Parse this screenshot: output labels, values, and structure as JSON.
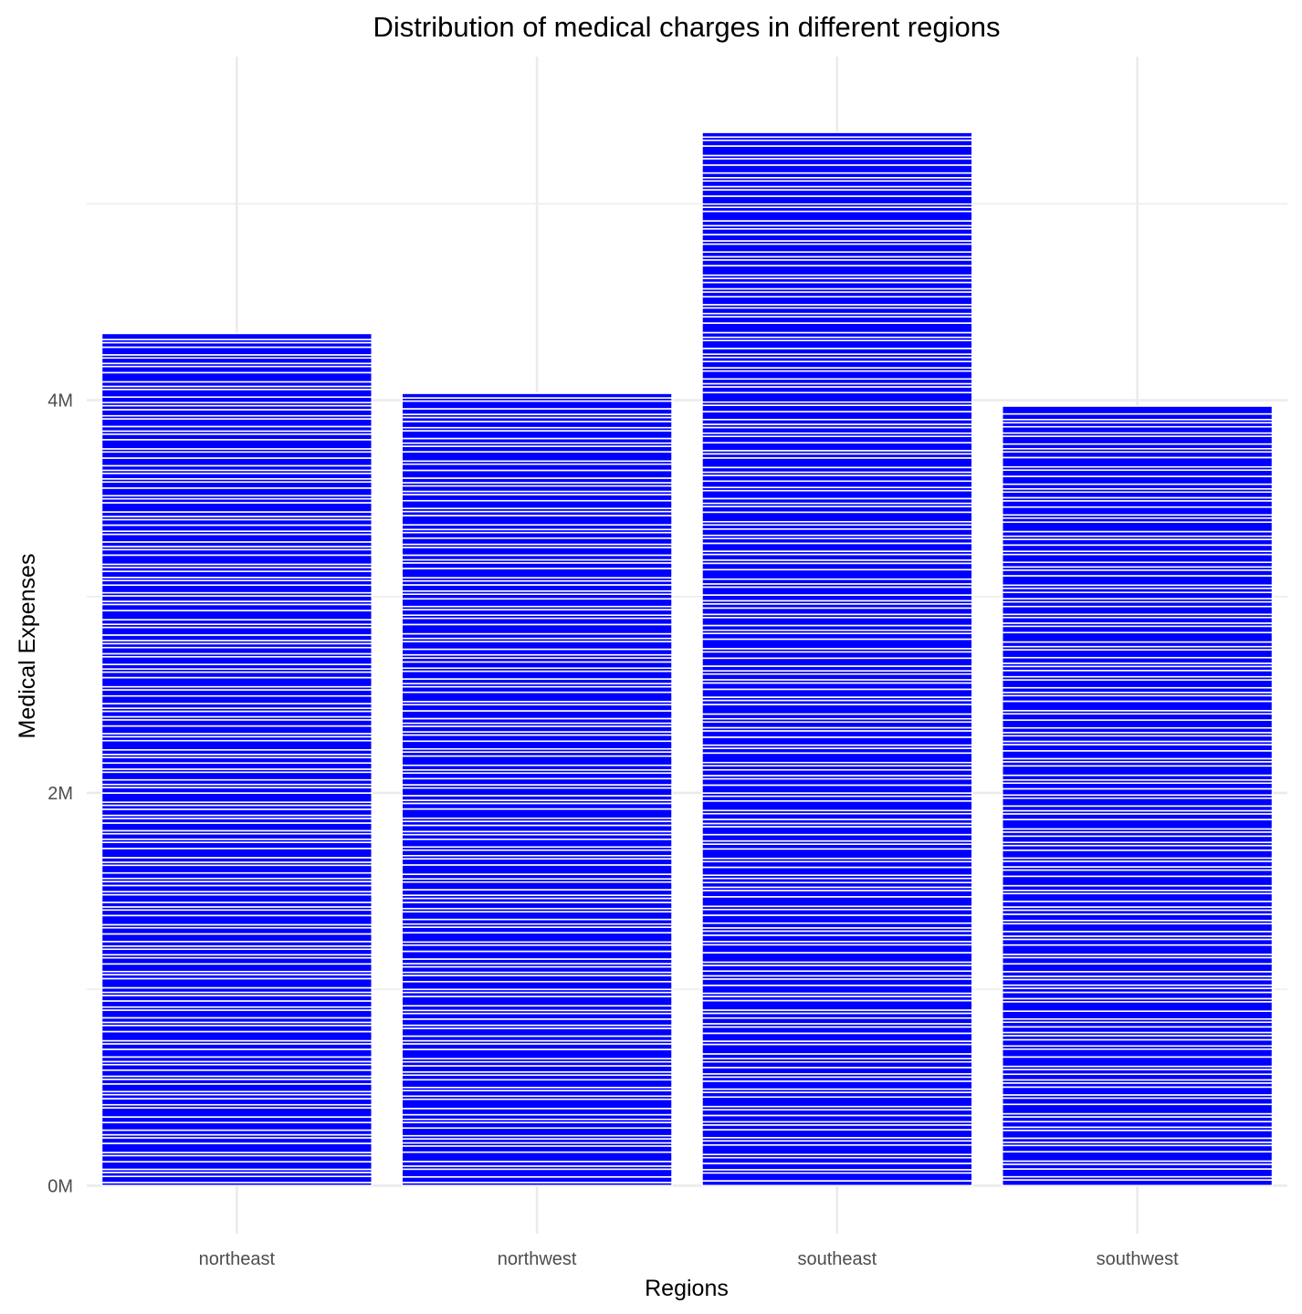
{
  "chart_data": {
    "type": "bar",
    "stacked": true,
    "title": "Distribution of medical charges in different regions",
    "xlabel": "Regions",
    "ylabel": "Medical Expenses",
    "categories": [
      "northeast",
      "northwest",
      "southeast",
      "southwest"
    ],
    "totals": [
      4340000,
      4035000,
      5364000,
      3970000
    ],
    "ylim": [
      -245000,
      5750000
    ],
    "yticks": [
      0,
      2000000,
      4000000
    ],
    "ytick_labels": [
      "0M",
      "2M",
      "4M"
    ],
    "segment_scale": 5000,
    "segments": [
      [
        40,
        80,
        52,
        40,
        100,
        80,
        40,
        120,
        72,
        40,
        60,
        100,
        72,
        120,
        40,
        80,
        52,
        40,
        100,
        60,
        40,
        80,
        72,
        40,
        60,
        100,
        72,
        40,
        120,
        80,
        40,
        60,
        100,
        40,
        80,
        72,
        40,
        60,
        120,
        52,
        40,
        100,
        80,
        40,
        72,
        40,
        60,
        100,
        80,
        40,
        120,
        72,
        40,
        60,
        100,
        40,
        80,
        52,
        40,
        72,
        100,
        40,
        60,
        120,
        80,
        40,
        72,
        40,
        100,
        60,
        40,
        80,
        52,
        40,
        120,
        72,
        40,
        60,
        100,
        40,
        80,
        72,
        40,
        60,
        120,
        52,
        40,
        100,
        80,
        40,
        72,
        40,
        60,
        100,
        80,
        40,
        120,
        72,
        40,
        60,
        100,
        40,
        80,
        52,
        40,
        72,
        100,
        40,
        60,
        120,
        80,
        40,
        72,
        40,
        100,
        60,
        40,
        80,
        52,
        40,
        120,
        72,
        40,
        60,
        100,
        40,
        80,
        72,
        40,
        60,
        120,
        52,
        40,
        100,
        80,
        40,
        72,
        40,
        60,
        100,
        80,
        40,
        120,
        72,
        40,
        60,
        100,
        40,
        80,
        52,
        40,
        72,
        100,
        40,
        60,
        120,
        80,
        40,
        72,
        40,
        100,
        60,
        40,
        80
      ],
      [
        40,
        72,
        100,
        40,
        60,
        120,
        80,
        40,
        52,
        40,
        100,
        72,
        40,
        60,
        80,
        120,
        40,
        72,
        40,
        100,
        60,
        40,
        80,
        52,
        40,
        120,
        72,
        40,
        60,
        100,
        40,
        80,
        72,
        40,
        60,
        120,
        52,
        40,
        100,
        80,
        40,
        72,
        40,
        60,
        100,
        80,
        40,
        120,
        72,
        40,
        60,
        100,
        40,
        80,
        52,
        40,
        72,
        100,
        40,
        60,
        120,
        80,
        40,
        72,
        40,
        100,
        60,
        40,
        80,
        52,
        40,
        120,
        72,
        40,
        60,
        100,
        40,
        80,
        72,
        40,
        60,
        120,
        52,
        40,
        100,
        80,
        40,
        72,
        40,
        60,
        100,
        80,
        40,
        120,
        72,
        40,
        60,
        100,
        40,
        80,
        52,
        40,
        72,
        100,
        40,
        60,
        120,
        80,
        40,
        72,
        40,
        100,
        60,
        40,
        80,
        52,
        40,
        120,
        72,
        40,
        60,
        100,
        40,
        80,
        72,
        40,
        60,
        120,
        52,
        40,
        100,
        80,
        40,
        72,
        40,
        60,
        100,
        80,
        40,
        120,
        72,
        40,
        60,
        100,
        40,
        80,
        52,
        40,
        72,
        100,
        40,
        60
      ],
      [
        60,
        100,
        40,
        80,
        72,
        40,
        120,
        52,
        40,
        100,
        60,
        40,
        80,
        72,
        40,
        120,
        60,
        40,
        100,
        52,
        40,
        80,
        72,
        40,
        60,
        120,
        40,
        100,
        80,
        40,
        72,
        60,
        40,
        120,
        52,
        40,
        100,
        80,
        40,
        60,
        72,
        40,
        120,
        100,
        40,
        80,
        52,
        40,
        60,
        100,
        72,
        40,
        120,
        80,
        40,
        60,
        52,
        40,
        100,
        72,
        40,
        120,
        60,
        40,
        80,
        100,
        40,
        52,
        72,
        40,
        120,
        60,
        40,
        100,
        80,
        40,
        72,
        52,
        40,
        120,
        60,
        40,
        100,
        80,
        40,
        72,
        40,
        60,
        120,
        52,
        40,
        100,
        80,
        40,
        72,
        40,
        60,
        100,
        80,
        40,
        120,
        72,
        40,
        60,
        100,
        40,
        80,
        52,
        40,
        72,
        100,
        40,
        60,
        120,
        80,
        40,
        72,
        40,
        100,
        60,
        40,
        80,
        52,
        40,
        120,
        72,
        40,
        60,
        100,
        40,
        80,
        72,
        40,
        60,
        120,
        52,
        40,
        100,
        80,
        40,
        72,
        40,
        60,
        100,
        80,
        40,
        120,
        72,
        40,
        60,
        100,
        40,
        80,
        52,
        40,
        72,
        100,
        40,
        60,
        120,
        80,
        40,
        72,
        40,
        100,
        60,
        40,
        80,
        52,
        40,
        120,
        72,
        40,
        60,
        100,
        40,
        80,
        72,
        40,
        60,
        120,
        52,
        40,
        100,
        80,
        40,
        72,
        40,
        60,
        100,
        80,
        40,
        120,
        72,
        40,
        60
      ],
      [
        72,
        40,
        100,
        60,
        40,
        120,
        80,
        40,
        52,
        100,
        40,
        72,
        60,
        40,
        120,
        80,
        40,
        100,
        52,
        40,
        72,
        60,
        40,
        120,
        100,
        40,
        80,
        52,
        40,
        72,
        60,
        40,
        100,
        120,
        40,
        80,
        52,
        40,
        72,
        40,
        60,
        100,
        80,
        40,
        120,
        72,
        40,
        60,
        100,
        40,
        80,
        52,
        40,
        72,
        100,
        40,
        60,
        120,
        80,
        40,
        72,
        40,
        100,
        60,
        40,
        80,
        52,
        40,
        120,
        72,
        40,
        60,
        100,
        40,
        80,
        72,
        40,
        60,
        120,
        52,
        40,
        100,
        80,
        40,
        72,
        40,
        60,
        100,
        80,
        40,
        120,
        72,
        40,
        60,
        100,
        40,
        80,
        52,
        40,
        72,
        100,
        40,
        60,
        120,
        80,
        40,
        72,
        40,
        100,
        60,
        40,
        80,
        52,
        40,
        120,
        72,
        40,
        60,
        100,
        40,
        80,
        72,
        40,
        60,
        120,
        52,
        40,
        100,
        80,
        40,
        72,
        40,
        60,
        100,
        80,
        40,
        120,
        72,
        40,
        60,
        100,
        40,
        80,
        52,
        40,
        72,
        100
      ]
    ],
    "bar_color": "#0000ff",
    "segment_border_color": "#ffffff",
    "grid": true,
    "legend": "none"
  }
}
